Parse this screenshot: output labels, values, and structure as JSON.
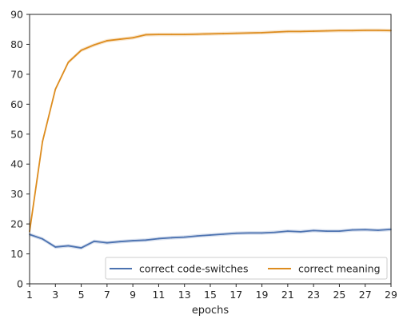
{
  "chart_data": {
    "type": "line",
    "title": "",
    "xlabel": "epochs",
    "ylabel": "",
    "xlim": [
      1,
      29
    ],
    "ylim": [
      0,
      90
    ],
    "x_ticks": [
      1,
      3,
      5,
      7,
      9,
      11,
      13,
      15,
      17,
      19,
      21,
      23,
      25,
      27,
      29
    ],
    "y_ticks": [
      0,
      10,
      20,
      30,
      40,
      50,
      60,
      70,
      80,
      90
    ],
    "grid": false,
    "legend_position": "lower-right",
    "x": [
      1,
      2,
      3,
      4,
      5,
      6,
      7,
      8,
      9,
      10,
      11,
      12,
      13,
      14,
      15,
      16,
      17,
      18,
      19,
      20,
      21,
      22,
      23,
      24,
      25,
      26,
      27,
      28,
      29
    ],
    "series": [
      {
        "name": "correct code-switches",
        "color": "#4c72b0",
        "values": [
          16.5,
          15.0,
          12.3,
          12.7,
          12.0,
          14.2,
          13.7,
          14.1,
          14.4,
          14.6,
          15.1,
          15.4,
          15.6,
          16.0,
          16.3,
          16.6,
          16.9,
          17.0,
          17.0,
          17.2,
          17.6,
          17.4,
          17.8,
          17.6,
          17.6,
          18.0,
          18.1,
          17.9,
          18.2
        ]
      },
      {
        "name": "correct meaning",
        "color": "#dd8c1e",
        "values": [
          17.5,
          47.5,
          65.0,
          74.0,
          78.0,
          79.8,
          81.2,
          81.7,
          82.2,
          83.2,
          83.3,
          83.3,
          83.3,
          83.4,
          83.5,
          83.6,
          83.7,
          83.8,
          83.9,
          84.1,
          84.3,
          84.3,
          84.4,
          84.5,
          84.6,
          84.6,
          84.7,
          84.7,
          84.6
        ]
      }
    ]
  }
}
